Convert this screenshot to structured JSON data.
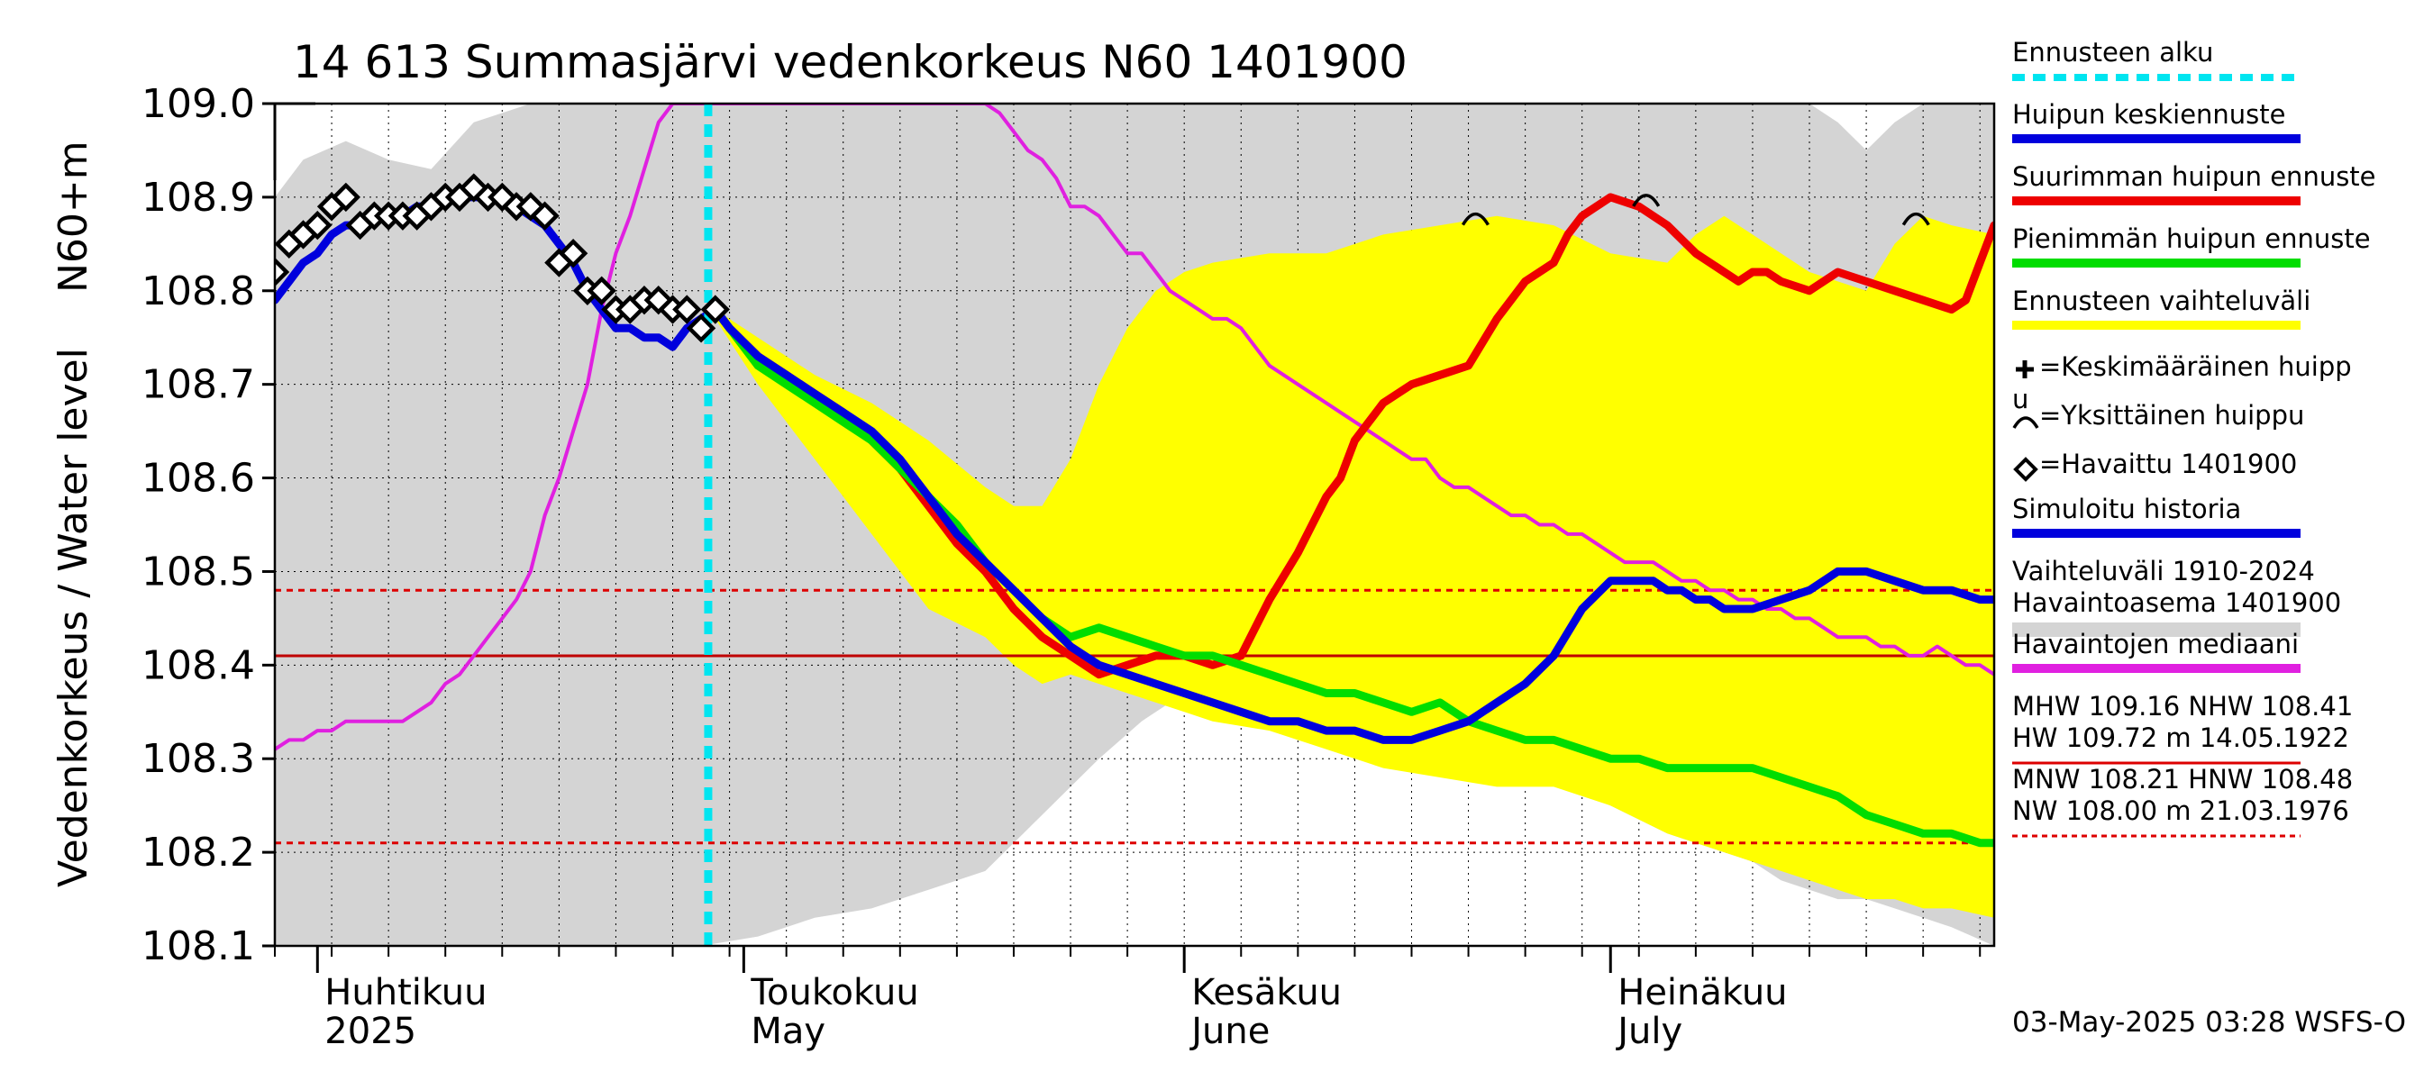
{
  "chart_data": {
    "type": "line",
    "title": "14 613 Summasjärvi vedenkorkeus N60 1401900",
    "ylabel_unit": "N60+m",
    "ylabel": "Vedenkorkeus / Water level",
    "ylim": [
      108.1,
      109.0
    ],
    "yticks": [
      "108.1",
      "108.2",
      "108.3",
      "108.4",
      "108.5",
      "108.6",
      "108.7",
      "108.8",
      "108.9",
      "109.0"
    ],
    "x_axis": {
      "unit": "days since 2025-03-29",
      "range": [
        0,
        121
      ],
      "months": [
        {
          "fi": "Huhtikuu",
          "en": "2025",
          "day": 3
        },
        {
          "fi": "Toukokuu",
          "en": "May",
          "day": 33
        },
        {
          "fi": "Kesäkuu",
          "en": "June",
          "day": 64
        },
        {
          "fi": "Heinäkuu",
          "en": "July",
          "day": 94
        }
      ],
      "forecast_start_day": 30.5
    },
    "reference_lines": [
      {
        "name": "HNW",
        "value": 108.48,
        "color": "#dd0000",
        "style": "dashed"
      },
      {
        "name": "NHW",
        "value": 108.41,
        "color": "#c00000",
        "style": "solid"
      },
      {
        "name": "MNW",
        "value": 108.21,
        "color": "#dd0000",
        "style": "dashed"
      }
    ],
    "history_band": {
      "name": "Vaihteluväli 1910-2024 Havaintoasema 1401900",
      "color": "#d4d4d4",
      "x": [
        0,
        2,
        5,
        8,
        11,
        14,
        18,
        22,
        26,
        30,
        34,
        38,
        42,
        46,
        50,
        54,
        58,
        61,
        64,
        66,
        70,
        74,
        78,
        82,
        86,
        90,
        94,
        98,
        100,
        102,
        104,
        106,
        108,
        110,
        112,
        114,
        116,
        118,
        121
      ],
      "upper": [
        108.9,
        108.94,
        108.96,
        108.94,
        108.93,
        108.98,
        109.0,
        109.0,
        109.0,
        109.0,
        109.0,
        109.0,
        109.0,
        109.0,
        109.0,
        109.0,
        109.0,
        109.0,
        109.0,
        109.0,
        109.0,
        109.0,
        109.0,
        109.0,
        109.0,
        109.0,
        109.0,
        109.0,
        109.0,
        109.0,
        109.0,
        109.0,
        109.0,
        108.98,
        108.95,
        108.98,
        109.0,
        109.0,
        109.0
      ],
      "lower": [
        108.1,
        108.1,
        108.1,
        108.1,
        108.1,
        108.1,
        108.1,
        108.1,
        108.1,
        108.1,
        108.11,
        108.13,
        108.14,
        108.16,
        108.18,
        108.24,
        108.3,
        108.34,
        108.37,
        108.38,
        108.38,
        108.37,
        108.35,
        108.33,
        108.31,
        108.28,
        108.25,
        108.22,
        108.21,
        108.2,
        108.19,
        108.17,
        108.16,
        108.15,
        108.15,
        108.14,
        108.13,
        108.12,
        108.1
      ]
    },
    "forecast_band": {
      "name": "Ennusteen vaihteluväli",
      "color": "#ffff00",
      "x": [
        31,
        34,
        38,
        42,
        46,
        50,
        52,
        54,
        56,
        58,
        60,
        62,
        64,
        66,
        70,
        74,
        78,
        82,
        86,
        90,
        94,
        98,
        100,
        102,
        104,
        106,
        108,
        110,
        112,
        114,
        116,
        118,
        121
      ],
      "upper": [
        108.78,
        108.75,
        108.71,
        108.68,
        108.64,
        108.59,
        108.57,
        108.57,
        108.62,
        108.7,
        108.76,
        108.8,
        108.82,
        108.83,
        108.84,
        108.84,
        108.86,
        108.87,
        108.88,
        108.87,
        108.84,
        108.83,
        108.86,
        108.88,
        108.86,
        108.84,
        108.82,
        108.81,
        108.8,
        108.85,
        108.88,
        108.87,
        108.86
      ],
      "lower": [
        108.77,
        108.7,
        108.62,
        108.54,
        108.46,
        108.43,
        108.4,
        108.38,
        108.39,
        108.38,
        108.37,
        108.36,
        108.35,
        108.34,
        108.33,
        108.31,
        108.29,
        108.28,
        108.27,
        108.27,
        108.25,
        108.22,
        108.21,
        108.2,
        108.19,
        108.18,
        108.17,
        108.16,
        108.15,
        108.15,
        108.14,
        108.14,
        108.13
      ]
    },
    "series": [
      {
        "name": "Havaintojen mediaani",
        "color": "#e020e0",
        "x": [
          0,
          1,
          2,
          3,
          4,
          5,
          6,
          7,
          8,
          9,
          10,
          11,
          12,
          13,
          14,
          15,
          16,
          17,
          18,
          19,
          20,
          21,
          22,
          23,
          24,
          25,
          26,
          27,
          28,
          29,
          30,
          31,
          32,
          33,
          34,
          35,
          36,
          37,
          38,
          39,
          40,
          41,
          42,
          43,
          44,
          45,
          46,
          47,
          48,
          49,
          50,
          51,
          52,
          53,
          54,
          55,
          56,
          57,
          58,
          59,
          60,
          61,
          62,
          63,
          64,
          65,
          66,
          67,
          68,
          69,
          70,
          71,
          72,
          73,
          74,
          75,
          76,
          77,
          78,
          79,
          80,
          81,
          82,
          83,
          84,
          85,
          86,
          87,
          88,
          89,
          90,
          91,
          92,
          93,
          94,
          95,
          96,
          97,
          98,
          99,
          100,
          101,
          102,
          103,
          104,
          105,
          106,
          107,
          108,
          109,
          110,
          111,
          112,
          113,
          114,
          115,
          116,
          117,
          118,
          119,
          120,
          121
        ],
        "values": [
          108.31,
          108.32,
          108.32,
          108.33,
          108.33,
          108.34,
          108.34,
          108.34,
          108.34,
          108.34,
          108.35,
          108.36,
          108.38,
          108.39,
          108.41,
          108.43,
          108.45,
          108.47,
          108.5,
          108.56,
          108.6,
          108.65,
          108.7,
          108.78,
          108.84,
          108.88,
          108.93,
          108.98,
          109.0,
          109.0,
          109.0,
          109.0,
          109.0,
          109.0,
          109.0,
          109.0,
          109.0,
          109.0,
          109.0,
          109.0,
          109.0,
          109.0,
          109.0,
          109.0,
          109.0,
          109.0,
          109.0,
          109.0,
          109.0,
          109.0,
          109.0,
          108.99,
          108.97,
          108.95,
          108.94,
          108.92,
          108.89,
          108.89,
          108.88,
          108.86,
          108.84,
          108.84,
          108.82,
          108.8,
          108.79,
          108.78,
          108.77,
          108.77,
          108.76,
          108.74,
          108.72,
          108.71,
          108.7,
          108.69,
          108.68,
          108.67,
          108.66,
          108.65,
          108.64,
          108.63,
          108.62,
          108.62,
          108.6,
          108.59,
          108.59,
          108.58,
          108.57,
          108.56,
          108.56,
          108.55,
          108.55,
          108.54,
          108.54,
          108.53,
          108.52,
          108.51,
          108.51,
          108.51,
          108.5,
          108.49,
          108.49,
          108.48,
          108.48,
          108.47,
          108.47,
          108.46,
          108.46,
          108.45,
          108.45,
          108.44,
          108.43,
          108.43,
          108.43,
          108.42,
          108.42,
          108.41,
          108.41,
          108.42,
          108.41,
          108.4,
          108.4,
          108.39
        ]
      },
      {
        "name": "Suurimman huipun ennuste",
        "color": "#ee0000",
        "x": [
          31,
          32,
          34,
          36,
          38,
          40,
          42,
          44,
          46,
          48,
          50,
          52,
          54,
          56,
          58,
          60,
          62,
          64,
          66,
          68,
          70,
          72,
          73,
          74,
          75,
          76,
          78,
          80,
          82,
          84,
          86,
          88,
          89,
          90,
          91,
          92,
          93,
          94,
          96,
          98,
          100,
          102,
          103,
          104,
          105,
          106,
          108,
          110,
          112,
          114,
          116,
          118,
          119,
          120,
          121
        ],
        "values": [
          108.78,
          108.76,
          108.73,
          108.71,
          108.69,
          108.67,
          108.64,
          108.61,
          108.57,
          108.53,
          108.5,
          108.46,
          108.43,
          108.41,
          108.39,
          108.4,
          108.41,
          108.41,
          108.4,
          108.41,
          108.47,
          108.52,
          108.55,
          108.58,
          108.6,
          108.64,
          108.68,
          108.7,
          108.71,
          108.72,
          108.77,
          108.81,
          108.82,
          108.83,
          108.86,
          108.88,
          108.89,
          108.9,
          108.89,
          108.87,
          108.84,
          108.82,
          108.81,
          108.82,
          108.82,
          108.81,
          108.8,
          108.82,
          108.81,
          108.8,
          108.79,
          108.78,
          108.79,
          108.83,
          108.87
        ]
      },
      {
        "name": "Pienimmän huipun ennuste",
        "color": "#00dd00",
        "x": [
          31,
          32,
          34,
          36,
          38,
          40,
          42,
          44,
          46,
          48,
          50,
          52,
          54,
          56,
          58,
          60,
          62,
          64,
          66,
          68,
          70,
          72,
          74,
          76,
          78,
          80,
          82,
          84,
          86,
          88,
          90,
          92,
          94,
          96,
          98,
          100,
          102,
          104,
          106,
          108,
          110,
          112,
          114,
          116,
          118,
          120,
          121
        ],
        "values": [
          108.78,
          108.76,
          108.72,
          108.7,
          108.68,
          108.66,
          108.64,
          108.61,
          108.58,
          108.55,
          108.51,
          108.48,
          108.45,
          108.43,
          108.44,
          108.43,
          108.42,
          108.41,
          108.41,
          108.4,
          108.39,
          108.38,
          108.37,
          108.37,
          108.36,
          108.35,
          108.36,
          108.34,
          108.33,
          108.32,
          108.32,
          108.31,
          108.3,
          108.3,
          108.29,
          108.29,
          108.29,
          108.29,
          108.28,
          108.27,
          108.26,
          108.24,
          108.23,
          108.22,
          108.22,
          108.21,
          108.21
        ]
      },
      {
        "name": "Huipun keskiennuste",
        "color": "#0000dd",
        "x": [
          0,
          1,
          2,
          3,
          4,
          5,
          6,
          7,
          8,
          9,
          10,
          11,
          12,
          13,
          14,
          15,
          16,
          17,
          18,
          19,
          20,
          21,
          22,
          23,
          24,
          25,
          26,
          27,
          28,
          29,
          30,
          31,
          32,
          34,
          36,
          38,
          40,
          42,
          44,
          46,
          48,
          50,
          52,
          54,
          56,
          58,
          60,
          62,
          64,
          66,
          68,
          70,
          72,
          74,
          76,
          78,
          80,
          82,
          84,
          86,
          88,
          90,
          92,
          94,
          95,
          96,
          97,
          98,
          99,
          100,
          101,
          102,
          104,
          106,
          108,
          110,
          112,
          114,
          116,
          118,
          120,
          121
        ],
        "values": [
          108.79,
          108.81,
          108.83,
          108.84,
          108.86,
          108.87,
          108.87,
          108.88,
          108.88,
          108.88,
          108.89,
          108.89,
          108.9,
          108.9,
          108.9,
          108.9,
          108.9,
          108.89,
          108.88,
          108.87,
          108.85,
          108.83,
          108.8,
          108.78,
          108.76,
          108.76,
          108.75,
          108.75,
          108.74,
          108.76,
          108.77,
          108.78,
          108.76,
          108.73,
          108.71,
          108.69,
          108.67,
          108.65,
          108.62,
          108.58,
          108.54,
          108.51,
          108.48,
          108.45,
          108.42,
          108.4,
          108.39,
          108.38,
          108.37,
          108.36,
          108.35,
          108.34,
          108.34,
          108.33,
          108.33,
          108.32,
          108.32,
          108.33,
          108.34,
          108.36,
          108.38,
          108.41,
          108.46,
          108.49,
          108.49,
          108.49,
          108.49,
          108.48,
          108.48,
          108.47,
          108.47,
          108.46,
          108.46,
          108.47,
          108.48,
          108.5,
          108.5,
          108.49,
          108.48,
          108.48,
          108.47,
          108.47
        ]
      }
    ],
    "observations": {
      "name": "Havaittu 1401900",
      "marker": "diamond",
      "x": [
        0,
        1,
        2,
        3,
        4,
        5,
        6,
        7,
        8,
        9,
        10,
        11,
        12,
        13,
        14,
        15,
        16,
        17,
        18,
        19,
        20,
        21,
        22,
        23,
        24,
        25,
        26,
        27,
        28,
        29,
        30,
        31
      ],
      "values": [
        108.82,
        108.85,
        108.86,
        108.87,
        108.89,
        108.9,
        108.87,
        108.88,
        108.88,
        108.88,
        108.88,
        108.89,
        108.9,
        108.9,
        108.91,
        108.9,
        108.9,
        108.89,
        108.89,
        108.88,
        108.83,
        108.84,
        108.8,
        108.8,
        108.78,
        108.78,
        108.79,
        108.79,
        108.78,
        108.78,
        108.76,
        108.78
      ]
    },
    "single_peaks": [
      {
        "x": 84.5,
        "value": 108.88
      },
      {
        "x": 96.5,
        "value": 108.9
      },
      {
        "x": 115.5,
        "value": 108.88
      }
    ],
    "legend": [
      {
        "label": "Ennusteen alku",
        "kind": "dashed",
        "color": "#00e5f0"
      },
      {
        "label": "Huipun keskiennuste",
        "kind": "bar",
        "color": "#0000dd"
      },
      {
        "label": "Suurimman huipun ennuste",
        "kind": "bar",
        "color": "#ee0000"
      },
      {
        "label": "Pienimmän huipun ennuste",
        "kind": "bar",
        "color": "#00dd00"
      },
      {
        "label": "Ennusteen vaihteluväli",
        "kind": "bar",
        "color": "#ffff00"
      },
      {
        "label": "=Keskimääräinen huipp",
        "label2": "u",
        "kind": "plus"
      },
      {
        "label": "=Yksittäinen huippu",
        "kind": "arc"
      },
      {
        "label": "=Havaittu 1401900",
        "kind": "diamond"
      },
      {
        "label": "Simuloitu historia",
        "kind": "bar",
        "color": "#0000dd"
      },
      {
        "label": "Vaihteluväli 1910-2024",
        "label2": " Havaintoasema 1401900",
        "kind": "bar",
        "color": "#d4d4d4"
      },
      {
        "label": "Havaintojen mediaani",
        "kind": "bar",
        "color": "#e020e0"
      },
      {
        "label": "MHW 109.16 NHW 108.41",
        "label2": "HW 109.72 m 14.05.1922",
        "kind": "solid",
        "color": "#dd0000"
      },
      {
        "label": "MNW 108.21 HNW 108.48",
        "label2": "NW 108.00 m 21.03.1976",
        "kind": "dashed",
        "color": "#dd0000"
      }
    ],
    "timestamp": "03-May-2025 03:28 WSFS-O"
  }
}
